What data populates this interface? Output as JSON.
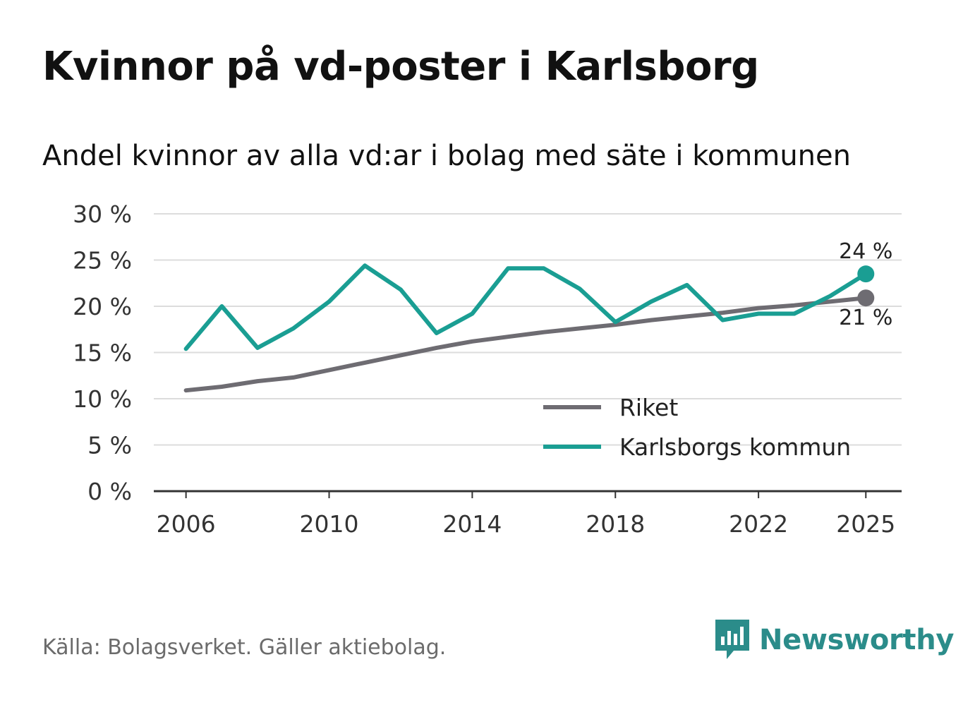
{
  "title": "Kvinnor på vd-poster i Karlsborg",
  "subtitle": "Andel kvinnor av alla vd:ar i bolag med säte i kommunen",
  "source": "Källa: Bolagsverket. Gäller aktiebolag.",
  "brand": {
    "name": "Newsworthy",
    "icon": "newsworthy-logo-icon",
    "color": "#2b8c8a"
  },
  "chart_data": {
    "type": "line",
    "title": "Andel kvinnor av alla vd:ar i bolag med säte i kommunen",
    "xlabel": "",
    "ylabel": "",
    "x": [
      2006,
      2007,
      2008,
      2009,
      2010,
      2011,
      2012,
      2013,
      2014,
      2015,
      2016,
      2017,
      2018,
      2019,
      2020,
      2021,
      2022,
      2023,
      2024,
      2025
    ],
    "xlim": [
      2005.1,
      2026
    ],
    "ylim": [
      0,
      30
    ],
    "y_ticks": [
      0,
      5,
      10,
      15,
      20,
      25,
      30
    ],
    "y_tick_labels": [
      "0 %",
      "5 %",
      "10 %",
      "15 %",
      "20 %",
      "25 %",
      "30 %"
    ],
    "x_ticks": [
      2006,
      2010,
      2014,
      2018,
      2022,
      2025
    ],
    "x_tick_labels": [
      "2006",
      "2010",
      "2014",
      "2018",
      "2022",
      "2025"
    ],
    "grid": true,
    "legend_position": "bottom-right",
    "series": [
      {
        "name": "Riket",
        "color": "#6e6c72",
        "values": [
          10.9,
          11.3,
          11.9,
          12.3,
          13.1,
          13.9,
          14.7,
          15.5,
          16.2,
          16.7,
          17.2,
          17.6,
          18.0,
          18.5,
          18.9,
          19.3,
          19.8,
          20.1,
          20.5,
          20.9
        ],
        "end_label": "21 %"
      },
      {
        "name": "Karlsborgs kommun",
        "color": "#1a9e93",
        "values": [
          15.4,
          20.0,
          15.5,
          17.6,
          20.5,
          24.4,
          21.8,
          17.1,
          19.2,
          24.1,
          24.1,
          21.9,
          18.3,
          20.5,
          22.3,
          18.5,
          19.2,
          19.2,
          21.1,
          23.5
        ],
        "end_label": "24 %"
      }
    ]
  }
}
